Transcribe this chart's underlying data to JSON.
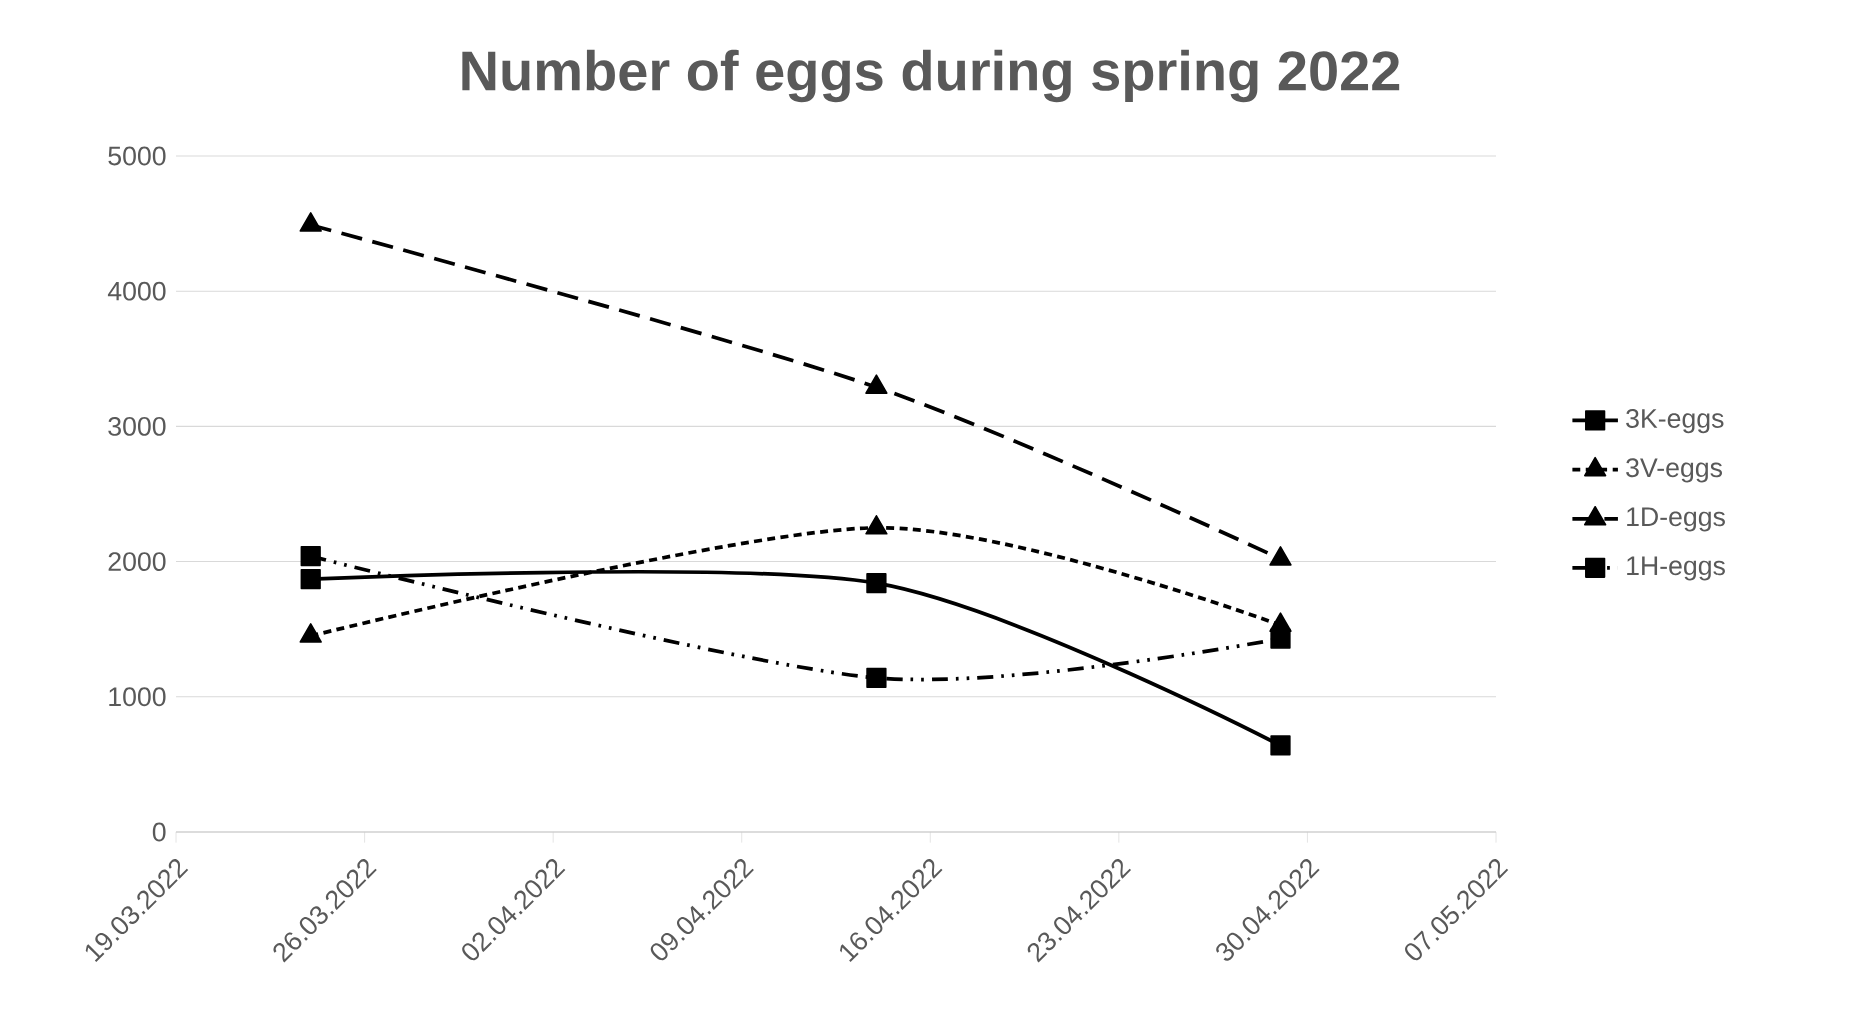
{
  "chart_data": {
    "type": "line",
    "title": "Number of eggs during spring 2022",
    "x": [
      "2022-03-24",
      "2022-04-14",
      "2022-04-29"
    ],
    "series": [
      {
        "name": "3K-eggs",
        "color": "#000000",
        "marker": "square",
        "line_style": "solid",
        "values": [
          1870,
          1840,
          640
        ]
      },
      {
        "name": "3V-eggs",
        "color": "#000000",
        "marker": "triangle",
        "line_style": "dotted",
        "values": [
          1450,
          2250,
          1530
        ]
      },
      {
        "name": "1D-eggs",
        "color": "#000000",
        "marker": "triangle",
        "line_style": "dashed",
        "values": [
          4490,
          3290,
          2020
        ]
      },
      {
        "name": "1H-eggs",
        "color": "#000000",
        "marker": "square",
        "line_style": "dashdotdot",
        "values": [
          2040,
          1140,
          1430
        ]
      }
    ],
    "xlim": [
      "2022-03-19",
      "2022-05-07"
    ],
    "xticks": [
      {
        "value": "2022-03-19",
        "label": "19.03.2022"
      },
      {
        "value": "2022-03-26",
        "label": "26.03.2022"
      },
      {
        "value": "2022-04-02",
        "label": "02.04.2022"
      },
      {
        "value": "2022-04-09",
        "label": "09.04.2022"
      },
      {
        "value": "2022-04-16",
        "label": "16.04.2022"
      },
      {
        "value": "2022-04-23",
        "label": "23.04.2022"
      },
      {
        "value": "2022-04-30",
        "label": "30.04.2022"
      },
      {
        "value": "2022-05-07",
        "label": "07.05.2022"
      }
    ],
    "ylim": [
      0,
      5000
    ],
    "yticks": [
      0,
      1000,
      2000,
      3000,
      4000,
      5000
    ],
    "grid": "y",
    "legend": "right"
  }
}
